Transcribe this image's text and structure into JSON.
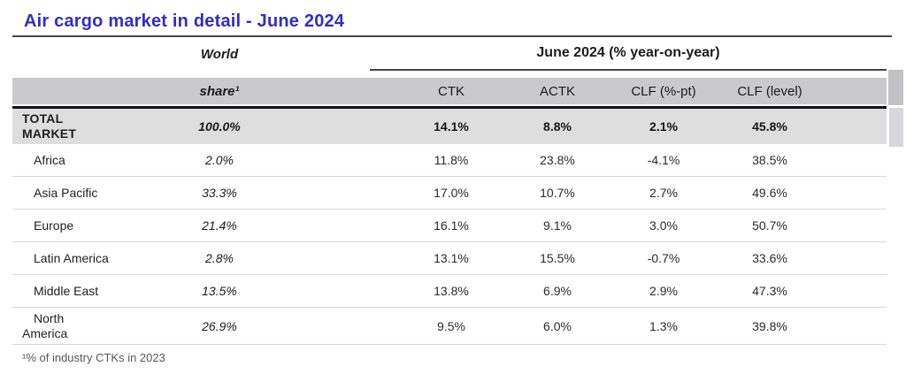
{
  "chart_data": {
    "type": "table",
    "title": "Air cargo market in detail - June 2024",
    "left_column_header": {
      "line1": "World",
      "line2": "share¹"
    },
    "group_header": "June 2024 (% year-on-year)",
    "columns": [
      "CTK",
      "ACTK",
      "CLF (%-pt)",
      "CLF (level)"
    ],
    "rows": [
      {
        "region": "TOTAL\nMARKET",
        "world_share": "100.0%",
        "ctk": "14.1%",
        "actk": "8.8%",
        "clf_pt": "2.1%",
        "clf_level": "45.8%"
      },
      {
        "region": "Africa",
        "world_share": "2.0%",
        "ctk": "11.8%",
        "actk": "23.8%",
        "clf_pt": "-4.1%",
        "clf_level": "38.5%"
      },
      {
        "region": "Asia Pacific",
        "world_share": "33.3%",
        "ctk": "17.0%",
        "actk": "10.7%",
        "clf_pt": "2.7%",
        "clf_level": "49.6%"
      },
      {
        "region": "Europe",
        "world_share": "21.4%",
        "ctk": "16.1%",
        "actk": "9.1%",
        "clf_pt": "3.0%",
        "clf_level": "50.7%"
      },
      {
        "region": "Latin America",
        "world_share": "2.8%",
        "ctk": "13.1%",
        "actk": "15.5%",
        "clf_pt": "-0.7%",
        "clf_level": "33.6%"
      },
      {
        "region": "Middle East",
        "world_share": "13.5%",
        "ctk": "13.8%",
        "actk": "6.9%",
        "clf_pt": "2.9%",
        "clf_level": "47.3%"
      },
      {
        "region": "North\nAmerica",
        "world_share": "26.9%",
        "ctk": "9.5%",
        "actk": "6.0%",
        "clf_pt": "1.3%",
        "clf_level": "39.8%"
      }
    ],
    "footnote": "¹% of industry CTKs in 2023",
    "layout_hints": {
      "title_color": "#2e2ecf",
      "header_bar_color": "#cacacc",
      "total_row_color": "#dedede",
      "rule_color": "#131315"
    }
  }
}
